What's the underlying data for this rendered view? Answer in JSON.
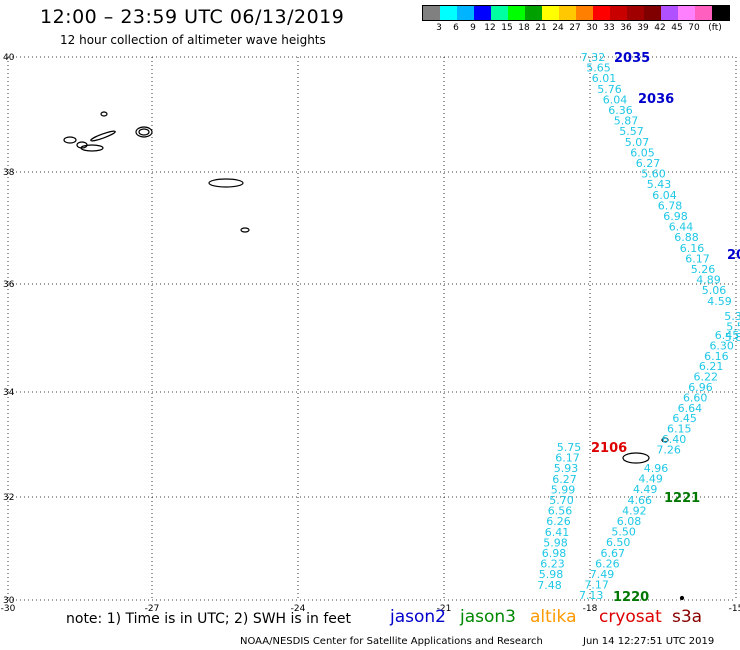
{
  "header": {
    "title": "12:00 – 23:59 UTC 06/13/2019",
    "subtitle": "12 hour collection of altimeter wave heights"
  },
  "colorbar": {
    "colors": [
      "#808080",
      "#00ffff",
      "#00b4ff",
      "#0000ff",
      "#00ffa0",
      "#00ff00",
      "#00a000",
      "#ffff00",
      "#ffc800",
      "#ff8000",
      "#ff0000",
      "#c80000",
      "#a00000",
      "#800000",
      "#b050ff",
      "#ff80ff",
      "#ff60c0",
      "#000000"
    ],
    "labels": [
      "3",
      "6",
      "9",
      "12",
      "15",
      "18",
      "21",
      "24",
      "27",
      "30",
      "33",
      "36",
      "39",
      "42",
      "45",
      "70",
      "(ft)"
    ]
  },
  "axes": {
    "lon_labels": [
      "-30",
      "-27",
      "-24",
      "-21",
      "-18",
      "-15"
    ],
    "lat_labels": [
      "40",
      "38",
      "38",
      "36",
      "34",
      "32",
      "30"
    ]
  },
  "passes": {
    "left_track": [
      "5.75",
      "6.17",
      "5.93",
      "6.27",
      "5.99",
      "5.70",
      "6.56",
      "6.26",
      "6.41",
      "5.98",
      "6.98",
      "6.23",
      "5.98",
      "7.48"
    ],
    "right_track": [
      "7.32",
      "5.65",
      "6.01",
      "5.76",
      "6.04",
      "6.36",
      "5.87",
      "5.57",
      "5.07",
      "6.05",
      "6.27",
      "5.60",
      "5.43",
      "6.04",
      "6.78",
      "6.98",
      "6.44",
      "6.88",
      "6.16",
      "6.17",
      "5.26",
      "4.89",
      "5.06",
      "4.59",
      "5.3",
      "5.5",
      "5.84",
      "6.45",
      "6.30",
      "6.16",
      "6.21",
      "6.22",
      "6.96",
      "6.60",
      "6.64",
      "6.45",
      "6.15",
      "6.40",
      "7.26"
    ],
    "lower_track": [
      "4.96",
      "4.49",
      "4.49",
      "4.66",
      "4.92",
      "6.08",
      "5.50",
      "6.50",
      "6.67",
      "6.26",
      "7.49",
      "7.17",
      "7.13"
    ]
  },
  "pass_times": [
    {
      "label": "2035",
      "color": "#0000cc"
    },
    {
      "label": "2036",
      "color": "#0000cc"
    },
    {
      "label": "20",
      "color": "#0000cc"
    },
    {
      "label": "2106",
      "color": "#dd0000"
    },
    {
      "label": "1221",
      "color": "#007700"
    },
    {
      "label": "1220",
      "color": "#007700"
    }
  ],
  "footer": {
    "note": "note: 1) Time is in UTC; 2) SWH is in feet",
    "credit": "NOAA/NESDIS Center for Satellite Applications and Research",
    "timestamp": "Jun 14 12:27:51 UTC 2019"
  },
  "legend": [
    {
      "label": "jason2",
      "color": "#0000cc"
    },
    {
      "label": "jason3",
      "color": "#008800"
    },
    {
      "label": "altika",
      "color": "#ff9900"
    },
    {
      "label": "cryosat",
      "color": "#dd0000"
    },
    {
      "label": "s3a",
      "color": "#880000"
    }
  ]
}
